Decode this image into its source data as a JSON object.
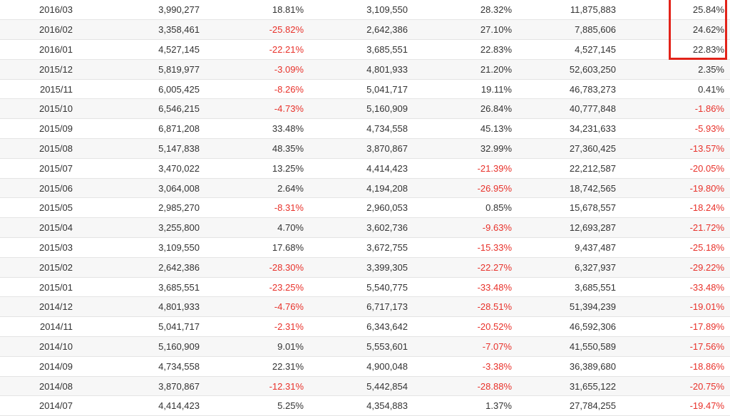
{
  "rows": [
    {
      "date": "2016/03",
      "a": "3,990,277",
      "b": "18.81%",
      "c": "3,109,550",
      "d": "28.32%",
      "e": "11,875,883",
      "f": "25.84%"
    },
    {
      "date": "2016/02",
      "a": "3,358,461",
      "b": "-25.82%",
      "c": "2,642,386",
      "d": "27.10%",
      "e": "7,885,606",
      "f": "24.62%"
    },
    {
      "date": "2016/01",
      "a": "4,527,145",
      "b": "-22.21%",
      "c": "3,685,551",
      "d": "22.83%",
      "e": "4,527,145",
      "f": "22.83%"
    },
    {
      "date": "2015/12",
      "a": "5,819,977",
      "b": "-3.09%",
      "c": "4,801,933",
      "d": "21.20%",
      "e": "52,603,250",
      "f": "2.35%"
    },
    {
      "date": "2015/11",
      "a": "6,005,425",
      "b": "-8.26%",
      "c": "5,041,717",
      "d": "19.11%",
      "e": "46,783,273",
      "f": "0.41%"
    },
    {
      "date": "2015/10",
      "a": "6,546,215",
      "b": "-4.73%",
      "c": "5,160,909",
      "d": "26.84%",
      "e": "40,777,848",
      "f": "-1.86%"
    },
    {
      "date": "2015/09",
      "a": "6,871,208",
      "b": "33.48%",
      "c": "4,734,558",
      "d": "45.13%",
      "e": "34,231,633",
      "f": "-5.93%"
    },
    {
      "date": "2015/08",
      "a": "5,147,838",
      "b": "48.35%",
      "c": "3,870,867",
      "d": "32.99%",
      "e": "27,360,425",
      "f": "-13.57%"
    },
    {
      "date": "2015/07",
      "a": "3,470,022",
      "b": "13.25%",
      "c": "4,414,423",
      "d": "-21.39%",
      "e": "22,212,587",
      "f": "-20.05%"
    },
    {
      "date": "2015/06",
      "a": "3,064,008",
      "b": "2.64%",
      "c": "4,194,208",
      "d": "-26.95%",
      "e": "18,742,565",
      "f": "-19.80%"
    },
    {
      "date": "2015/05",
      "a": "2,985,270",
      "b": "-8.31%",
      "c": "2,960,053",
      "d": "0.85%",
      "e": "15,678,557",
      "f": "-18.24%"
    },
    {
      "date": "2015/04",
      "a": "3,255,800",
      "b": "4.70%",
      "c": "3,602,736",
      "d": "-9.63%",
      "e": "12,693,287",
      "f": "-21.72%"
    },
    {
      "date": "2015/03",
      "a": "3,109,550",
      "b": "17.68%",
      "c": "3,672,755",
      "d": "-15.33%",
      "e": "9,437,487",
      "f": "-25.18%"
    },
    {
      "date": "2015/02",
      "a": "2,642,386",
      "b": "-28.30%",
      "c": "3,399,305",
      "d": "-22.27%",
      "e": "6,327,937",
      "f": "-29.22%"
    },
    {
      "date": "2015/01",
      "a": "3,685,551",
      "b": "-23.25%",
      "c": "5,540,775",
      "d": "-33.48%",
      "e": "3,685,551",
      "f": "-33.48%"
    },
    {
      "date": "2014/12",
      "a": "4,801,933",
      "b": "-4.76%",
      "c": "6,717,173",
      "d": "-28.51%",
      "e": "51,394,239",
      "f": "-19.01%"
    },
    {
      "date": "2014/11",
      "a": "5,041,717",
      "b": "-2.31%",
      "c": "6,343,642",
      "d": "-20.52%",
      "e": "46,592,306",
      "f": "-17.89%"
    },
    {
      "date": "2014/10",
      "a": "5,160,909",
      "b": "9.01%",
      "c": "5,553,601",
      "d": "-7.07%",
      "e": "41,550,589",
      "f": "-17.56%"
    },
    {
      "date": "2014/09",
      "a": "4,734,558",
      "b": "22.31%",
      "c": "4,900,048",
      "d": "-3.38%",
      "e": "36,389,680",
      "f": "-18.86%"
    },
    {
      "date": "2014/08",
      "a": "3,870,867",
      "b": "-12.31%",
      "c": "5,442,854",
      "d": "-28.88%",
      "e": "31,655,122",
      "f": "-20.75%"
    },
    {
      "date": "2014/07",
      "a": "4,414,423",
      "b": "5.25%",
      "c": "4,354,883",
      "d": "1.37%",
      "e": "27,784,255",
      "f": "-19.47%"
    }
  ],
  "colors": {
    "negative": "#e8312a",
    "positive": "#333333",
    "highlight": "#e2231a",
    "row_alt": "#f7f7f7"
  }
}
